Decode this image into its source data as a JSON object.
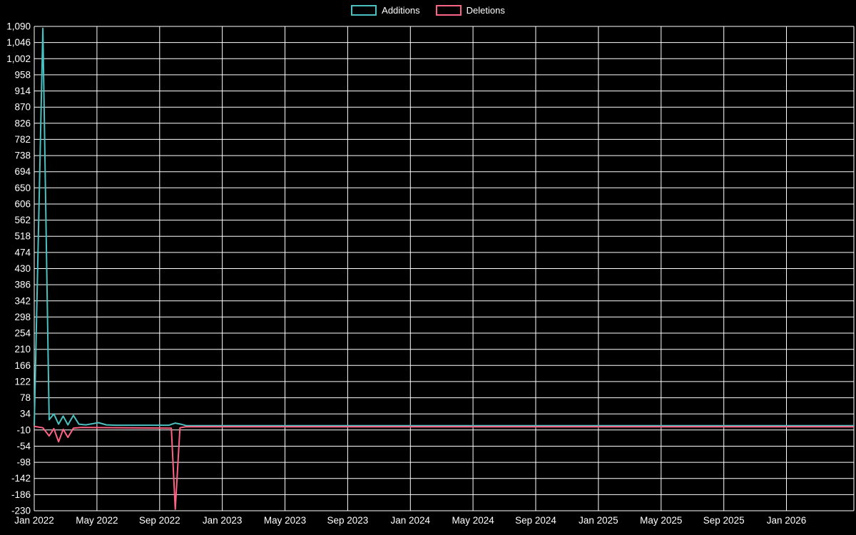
{
  "legend": {
    "items": [
      {
        "label": "Additions",
        "color": "#4bc0c0"
      },
      {
        "label": "Deletions",
        "color": "#ff6384"
      }
    ]
  },
  "chart_data": {
    "type": "line",
    "title": "",
    "xlabel": "",
    "ylabel": "",
    "background": "#000000",
    "grid_color": "#ffffff",
    "text_color": "#ffffff",
    "grid": true,
    "legend_position": "top",
    "x_unit": "months since Jan 2022",
    "x_domain": [
      0,
      52.3
    ],
    "y_domain": [
      -230,
      1090
    ],
    "y_tick_step": 44,
    "y_ticks": [
      1090,
      1046,
      1002,
      958,
      914,
      870,
      826,
      782,
      738,
      694,
      650,
      606,
      562,
      518,
      474,
      430,
      386,
      342,
      298,
      254,
      210,
      166,
      122,
      78,
      34,
      -10,
      -54,
      -98,
      -142,
      -186,
      -230
    ],
    "x_ticks": [
      {
        "pos": 0,
        "label": "Jan 2022"
      },
      {
        "pos": 4,
        "label": "May 2022"
      },
      {
        "pos": 8,
        "label": "Sep 2022"
      },
      {
        "pos": 12,
        "label": "Jan 2023"
      },
      {
        "pos": 16,
        "label": "May 2023"
      },
      {
        "pos": 20,
        "label": "Sep 2023"
      },
      {
        "pos": 24,
        "label": "Jan 2024"
      },
      {
        "pos": 28,
        "label": "May 2024"
      },
      {
        "pos": 32,
        "label": "Sep 2024"
      },
      {
        "pos": 36,
        "label": "Jan 2025"
      },
      {
        "pos": 40,
        "label": "May 2025"
      },
      {
        "pos": 44,
        "label": "Sep 2025"
      },
      {
        "pos": 48,
        "label": "Jan 2026"
      }
    ],
    "series": [
      {
        "name": "Additions",
        "color": "#4bc0c0",
        "points": [
          [
            0,
            2
          ],
          [
            0.55,
            1085
          ],
          [
            0.95,
            18
          ],
          [
            1.25,
            34
          ],
          [
            1.55,
            6
          ],
          [
            1.85,
            28
          ],
          [
            2.15,
            4
          ],
          [
            2.5,
            30
          ],
          [
            2.85,
            6
          ],
          [
            3.3,
            4
          ],
          [
            4.1,
            10
          ],
          [
            4.6,
            4
          ],
          [
            5.2,
            3
          ],
          [
            8.6,
            3
          ],
          [
            9.0,
            9
          ],
          [
            9.35,
            6
          ],
          [
            9.7,
            2
          ],
          [
            52.3,
            2
          ]
        ]
      },
      {
        "name": "Deletions",
        "color": "#ff6384",
        "points": [
          [
            0,
            0
          ],
          [
            0.55,
            -4
          ],
          [
            0.95,
            -26
          ],
          [
            1.25,
            -6
          ],
          [
            1.55,
            -42
          ],
          [
            1.85,
            -8
          ],
          [
            2.15,
            -30
          ],
          [
            2.5,
            -5
          ],
          [
            3.0,
            -3
          ],
          [
            8.75,
            -5
          ],
          [
            9.0,
            -226
          ],
          [
            9.3,
            -4
          ],
          [
            9.7,
            -1
          ],
          [
            52.3,
            -1
          ]
        ]
      }
    ]
  }
}
